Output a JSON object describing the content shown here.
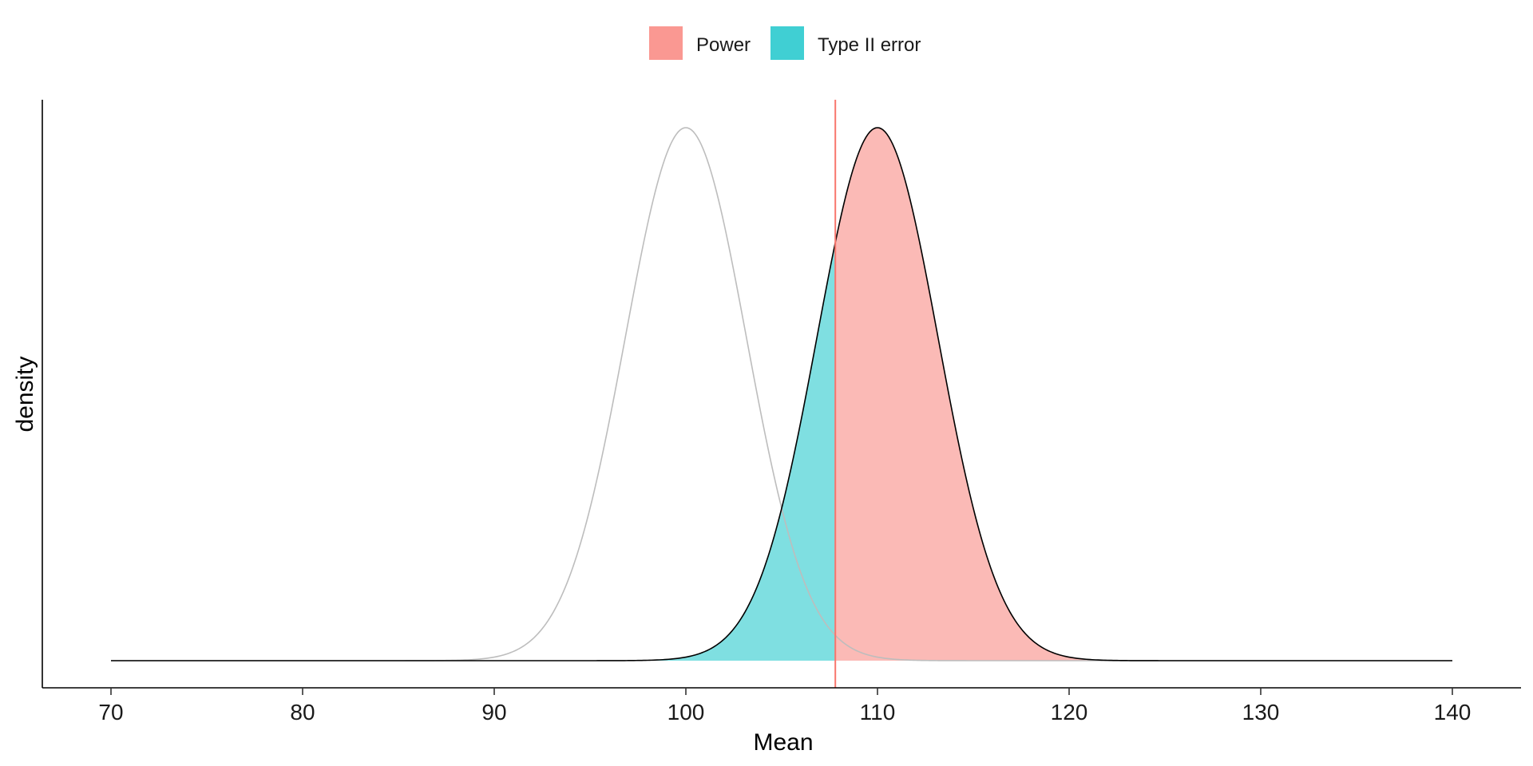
{
  "chart_data": {
    "type": "area",
    "title": "",
    "xlabel": "Mean",
    "ylabel": "density",
    "xlim": [
      70,
      140
    ],
    "xticks": [
      70,
      80,
      90,
      100,
      110,
      120,
      130,
      140
    ],
    "y_tick_labels": false,
    "grid": false,
    "legend_position": "top-center",
    "legend": [
      {
        "name": "Power",
        "color": "#F8766D"
      },
      {
        "name": "Type II error",
        "color": "#00BFC4"
      }
    ],
    "null_distribution": {
      "mean": 100,
      "sd": 3.16,
      "color": "#BDBDBD"
    },
    "alternative_distribution": {
      "mean": 110,
      "sd": 3.16,
      "color": "#000000"
    },
    "critical_value": 107.8,
    "critical_line_color": "#F8766D"
  }
}
